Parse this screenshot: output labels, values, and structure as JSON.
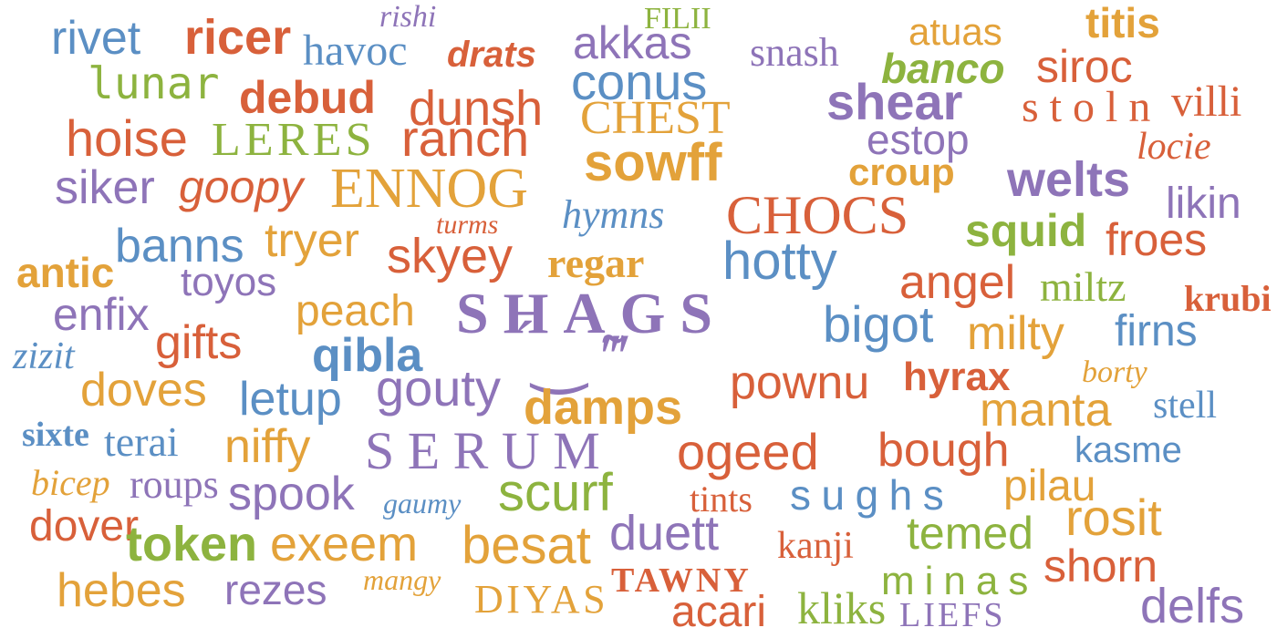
{
  "colors": {
    "blue": "#5b8fc4",
    "orange": "#e3a23a",
    "red": "#d8603a",
    "purple": "#8e74b8",
    "green": "#8db33f",
    "background": "#ffffff"
  },
  "words": {
    "rivet": "rivet",
    "ricer": "ricer",
    "rishi": "rishi",
    "havoc": "havoc",
    "drats": "drats",
    "filii": "FILII",
    "akkas": "akkas",
    "snash": "snash",
    "atuas": "atuas",
    "titis": "titis",
    "lunar": "lunar",
    "debud": "debud",
    "conus": "conus",
    "banco": "banco",
    "siroc": "siroc",
    "dunsh": "dunsh",
    "shear": "shear",
    "villi": "villi",
    "chest": "CHEST",
    "stoln": "stoln",
    "hoise": "hoise",
    "leres": "LERES",
    "ranch": "ranch",
    "estop": "estop",
    "locie": "locie",
    "sowff": "sowff",
    "siker": "siker",
    "goopy": "goopy",
    "ennog": "ENNOG",
    "croup": "croup",
    "welts": "welts",
    "likin": "likin",
    "turms": "turms",
    "hymns": "hymns",
    "chocs": "CHOCS",
    "squid": "squid",
    "banns": "banns",
    "tryer": "tryer",
    "froes": "froes",
    "antic": "antic",
    "skyey": "skyey",
    "regar": "regar",
    "hotty": "hotty",
    "toyos": "toyos",
    "angel": "angel",
    "miltz": "miltz",
    "krubi": "krubi",
    "enfix": "enfix",
    "peach": "peach",
    "shags": "SHAGS",
    "bigot": "bigot",
    "gifts": "gifts",
    "milty": "milty",
    "firns": "firns",
    "zizit": "zizit",
    "qibla": "qibla",
    "pownu": "pownu",
    "hyrax": "hyrax",
    "borty": "borty",
    "doves": "doves",
    "letup": "letup",
    "gouty": "gouty",
    "damps": "damps",
    "manta": "manta",
    "stell": "stell",
    "sixte": "sixte",
    "terai": "terai",
    "niffy": "niffy",
    "serum": "SERUM",
    "ogeed": "ogeed",
    "bough": "bough",
    "kasme": "kasme",
    "bicep": "bicep",
    "roups": "roups",
    "spook": "spook",
    "gaumy": "gaumy",
    "scurf": "scurf",
    "tints": "tints",
    "sughs": "sughs",
    "pilau": "pilau",
    "dover": "dover",
    "token": "token",
    "exeem": "exeem",
    "besat": "besat",
    "duett": "duett",
    "kanji": "kanji",
    "temed": "temed",
    "rosit": "rosit",
    "shorn": "shorn",
    "hebes": "hebes",
    "rezes": "rezes",
    "mangy": "mangy",
    "diyas": "DIYAS",
    "tawny": "TAWNY",
    "minas": "minas",
    "acari": "acari",
    "kliks": "kliks",
    "liefs": "LIEFS",
    "delfs": "delfs"
  }
}
